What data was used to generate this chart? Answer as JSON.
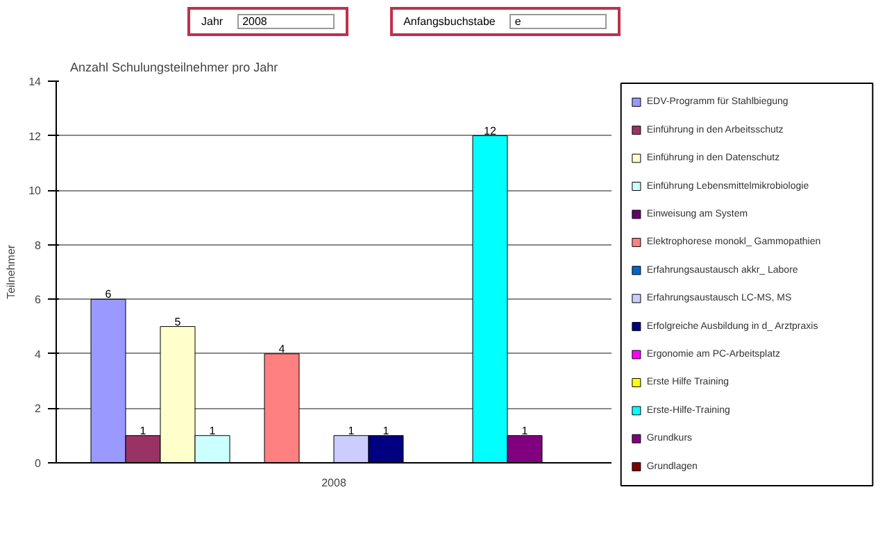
{
  "chart_data": {
    "type": "bar",
    "title": "Anzahl Schulungsteilnehmer pro Jahr",
    "ylabel": "Teilnehmer",
    "annotations": [
      "Jahr",
      "2008",
      "Anfangsbuchstabe",
      "e"
    ],
    "categories": [
      "2008"
    ],
    "ylim": [
      0,
      14
    ],
    "yticks": [
      0,
      2,
      4,
      6,
      8,
      10,
      12,
      14
    ],
    "grid": "y",
    "legend": "right",
    "data_labels": true,
    "series": [
      {
        "name": "EDV-Programm für Stahlbiegung",
        "color": "#9999ff",
        "values": [
          6
        ]
      },
      {
        "name": "Einführung in den Arbeitsschutz",
        "color": "#993366",
        "values": [
          1
        ]
      },
      {
        "name": "Einführung in den Datenschutz",
        "color": "#ffffcc",
        "values": [
          5
        ]
      },
      {
        "name": "Einführung Lebensmittelmikrobiologie",
        "color": "#ccffff",
        "values": [
          1
        ]
      },
      {
        "name": "Einweisung am System",
        "color": "#660066",
        "values": [
          null
        ]
      },
      {
        "name": "Elektrophorese monokl_ Gammopathien",
        "color": "#ff8080",
        "values": [
          4
        ]
      },
      {
        "name": "Erfahrungsaustausch akkr_ Labore",
        "color": "#0066cc",
        "values": [
          null
        ]
      },
      {
        "name": "Erfahrungsaustausch LC-MS, MS",
        "color": "#ccccff",
        "values": [
          1
        ]
      },
      {
        "name": "Erfolgreiche Ausbildung in d_ Arztpraxis",
        "color": "#000080",
        "values": [
          1
        ]
      },
      {
        "name": "Ergonomie am PC-Arbeitsplatz",
        "color": "#ff00ff",
        "values": [
          null
        ]
      },
      {
        "name": "Erste Hilfe Training",
        "color": "#ffff00",
        "values": [
          null
        ]
      },
      {
        "name": "Erste-Hilfe-Training",
        "color": "#00ffff",
        "values": [
          12
        ]
      },
      {
        "name": "Grundkurs",
        "color": "#800080",
        "values": [
          1
        ]
      },
      {
        "name": "Grundlagen",
        "color": "#800000",
        "values": [
          null
        ]
      }
    ]
  }
}
